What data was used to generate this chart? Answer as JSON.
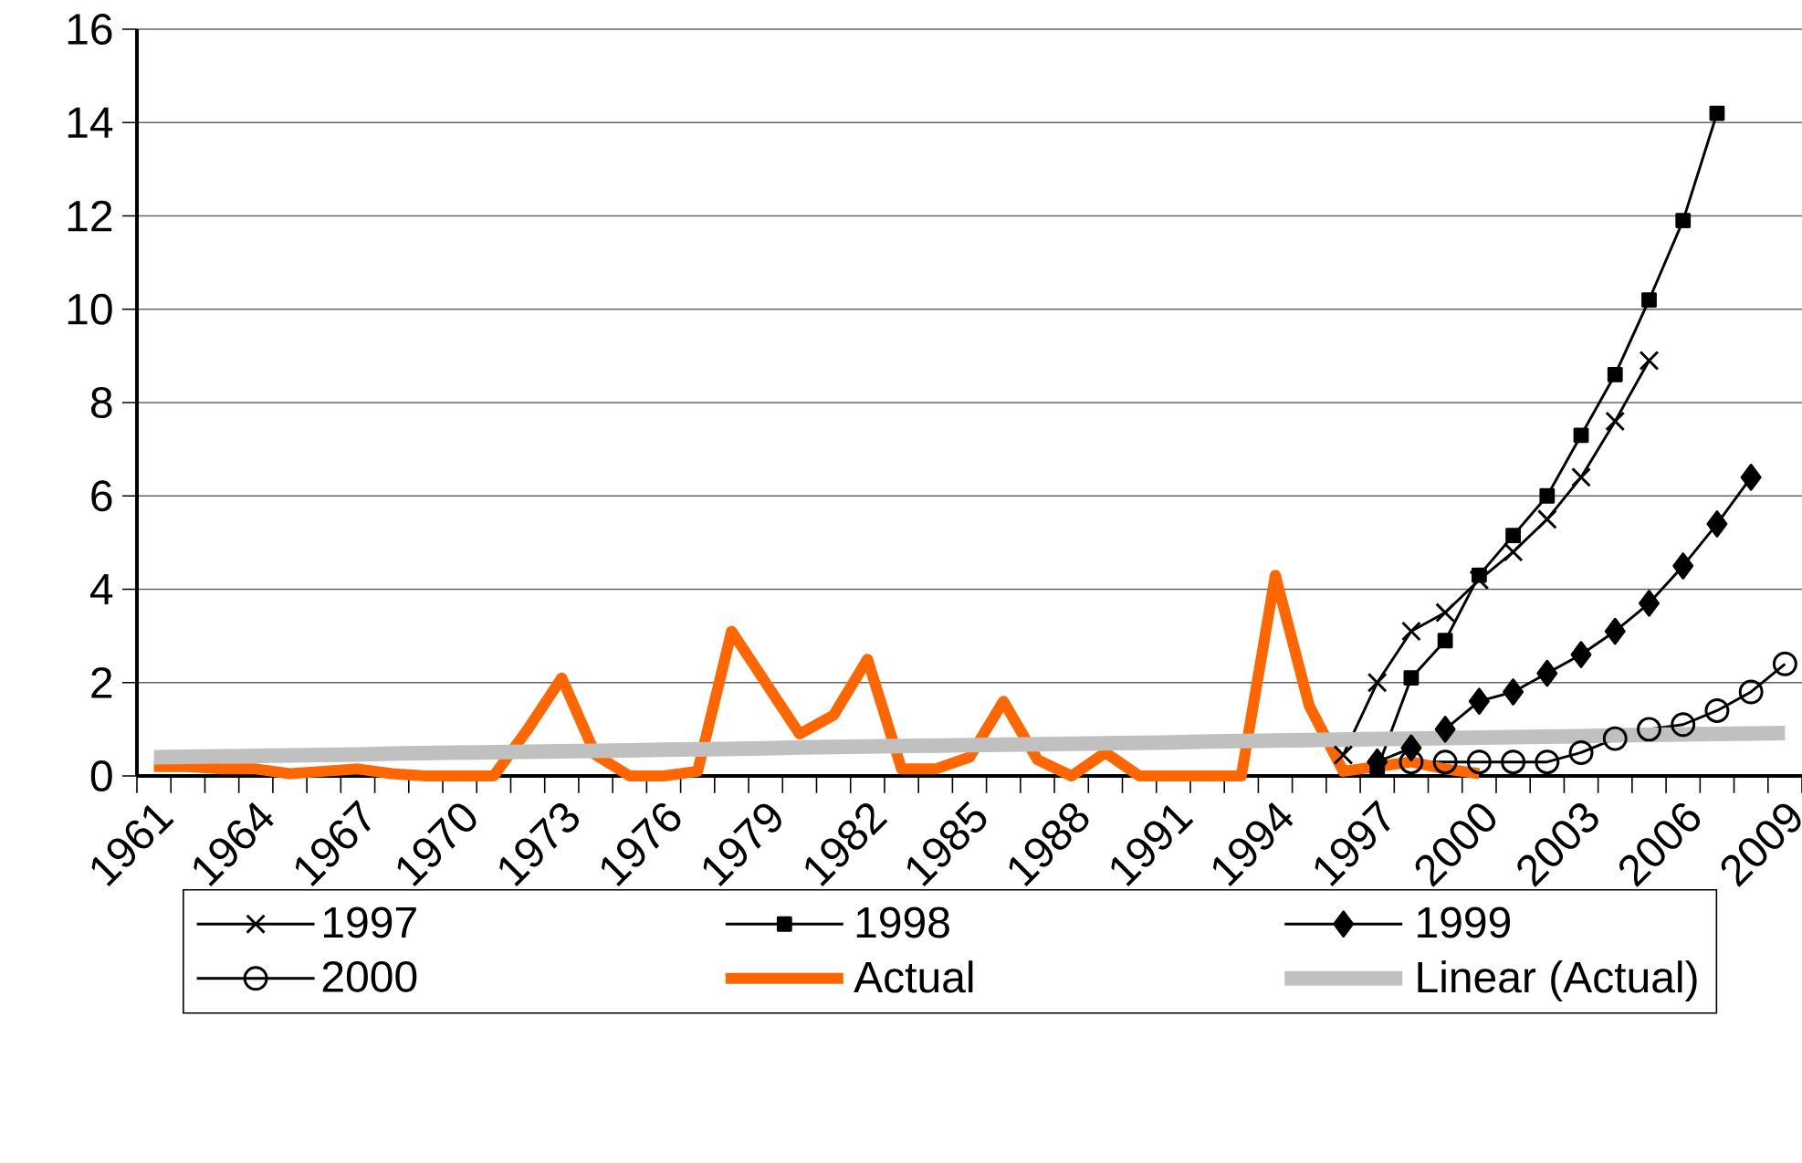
{
  "chart_data": {
    "type": "line",
    "categories": [
      "1961",
      null,
      null,
      "1964",
      null,
      null,
      "1967",
      null,
      null,
      "1970",
      null,
      null,
      "1973",
      null,
      null,
      "1976",
      null,
      null,
      "1979",
      null,
      null,
      "1982",
      null,
      null,
      "1985",
      null,
      null,
      "1988",
      null,
      null,
      "1991",
      null,
      null,
      "1994",
      null,
      null,
      "1997",
      null,
      null,
      "2000",
      null,
      null,
      "2003",
      null,
      null,
      "2006",
      null,
      null,
      "2009"
    ],
    "ylim": [
      0,
      16
    ],
    "yticks": [
      0,
      2,
      4,
      6,
      8,
      10,
      12,
      14,
      16
    ],
    "grid": "y",
    "legend": "bottom",
    "line_style": "solid",
    "series": [
      {
        "name": "1997",
        "color": "#000000",
        "marker": "cross",
        "values": [
          null,
          null,
          null,
          null,
          null,
          null,
          null,
          null,
          null,
          null,
          null,
          null,
          null,
          null,
          null,
          null,
          null,
          null,
          null,
          null,
          null,
          null,
          null,
          null,
          null,
          null,
          null,
          null,
          null,
          null,
          null,
          null,
          null,
          null,
          null,
          0.45,
          2.0,
          3.1,
          3.5,
          4.2,
          4.8,
          5.5,
          6.4,
          7.6,
          8.9,
          null,
          null,
          null,
          null
        ]
      },
      {
        "name": "1998",
        "color": "#000000",
        "marker": "square",
        "values": [
          null,
          null,
          null,
          null,
          null,
          null,
          null,
          null,
          null,
          null,
          null,
          null,
          null,
          null,
          null,
          null,
          null,
          null,
          null,
          null,
          null,
          null,
          null,
          null,
          null,
          null,
          null,
          null,
          null,
          null,
          null,
          null,
          null,
          null,
          null,
          null,
          0.15,
          2.1,
          2.9,
          4.3,
          5.15,
          6.0,
          7.3,
          8.6,
          10.2,
          11.9,
          14.2,
          null,
          null
        ]
      },
      {
        "name": "1999",
        "color": "#000000",
        "marker": "diamond",
        "values": [
          null,
          null,
          null,
          null,
          null,
          null,
          null,
          null,
          null,
          null,
          null,
          null,
          null,
          null,
          null,
          null,
          null,
          null,
          null,
          null,
          null,
          null,
          null,
          null,
          null,
          null,
          null,
          null,
          null,
          null,
          null,
          null,
          null,
          null,
          null,
          null,
          0.3,
          0.6,
          1.0,
          1.6,
          1.8,
          2.2,
          2.6,
          3.1,
          3.7,
          4.5,
          5.4,
          6.4,
          null
        ]
      },
      {
        "name": "2000",
        "color": "#000000",
        "marker": "circle",
        "values": [
          null,
          null,
          null,
          null,
          null,
          null,
          null,
          null,
          null,
          null,
          null,
          null,
          null,
          null,
          null,
          null,
          null,
          null,
          null,
          null,
          null,
          null,
          null,
          null,
          null,
          null,
          null,
          null,
          null,
          null,
          null,
          null,
          null,
          null,
          null,
          null,
          null,
          0.3,
          0.3,
          0.3,
          0.3,
          0.3,
          0.5,
          0.8,
          1.0,
          1.1,
          1.4,
          1.8,
          2.4
        ]
      },
      {
        "name": "Actual",
        "color": "#ff6600",
        "marker": "none",
        "values": [
          0.2,
          0.2,
          0.15,
          0.15,
          0.05,
          0.1,
          0.15,
          0.05,
          0,
          0,
          0,
          1.0,
          2.1,
          0.45,
          0,
          0,
          0.1,
          3.1,
          2.0,
          0.9,
          1.3,
          2.5,
          0.15,
          0.15,
          0.4,
          1.6,
          0.35,
          0,
          0.5,
          0,
          0,
          0,
          0,
          4.3,
          1.5,
          0.1,
          0.2,
          0.3,
          0.15,
          0.05,
          null,
          null,
          null,
          null,
          null,
          null,
          null,
          null,
          null
        ]
      },
      {
        "name": "Linear (Actual)",
        "color": "#c0c0c0",
        "marker": "none",
        "values": [
          0.4,
          0.41,
          0.42,
          0.43,
          0.44,
          0.45,
          0.46,
          0.48,
          0.49,
          0.5,
          0.51,
          0.52,
          0.53,
          0.54,
          0.55,
          0.56,
          0.57,
          0.58,
          0.59,
          0.61,
          0.62,
          0.63,
          0.64,
          0.65,
          0.66,
          0.67,
          0.68,
          0.69,
          0.7,
          0.71,
          0.72,
          0.74,
          0.75,
          0.76,
          0.77,
          0.78,
          0.79,
          0.8,
          0.81,
          0.82,
          0.83,
          0.84,
          0.85,
          0.87,
          0.88,
          0.89,
          0.9,
          0.91,
          0.92
        ]
      }
    ]
  }
}
